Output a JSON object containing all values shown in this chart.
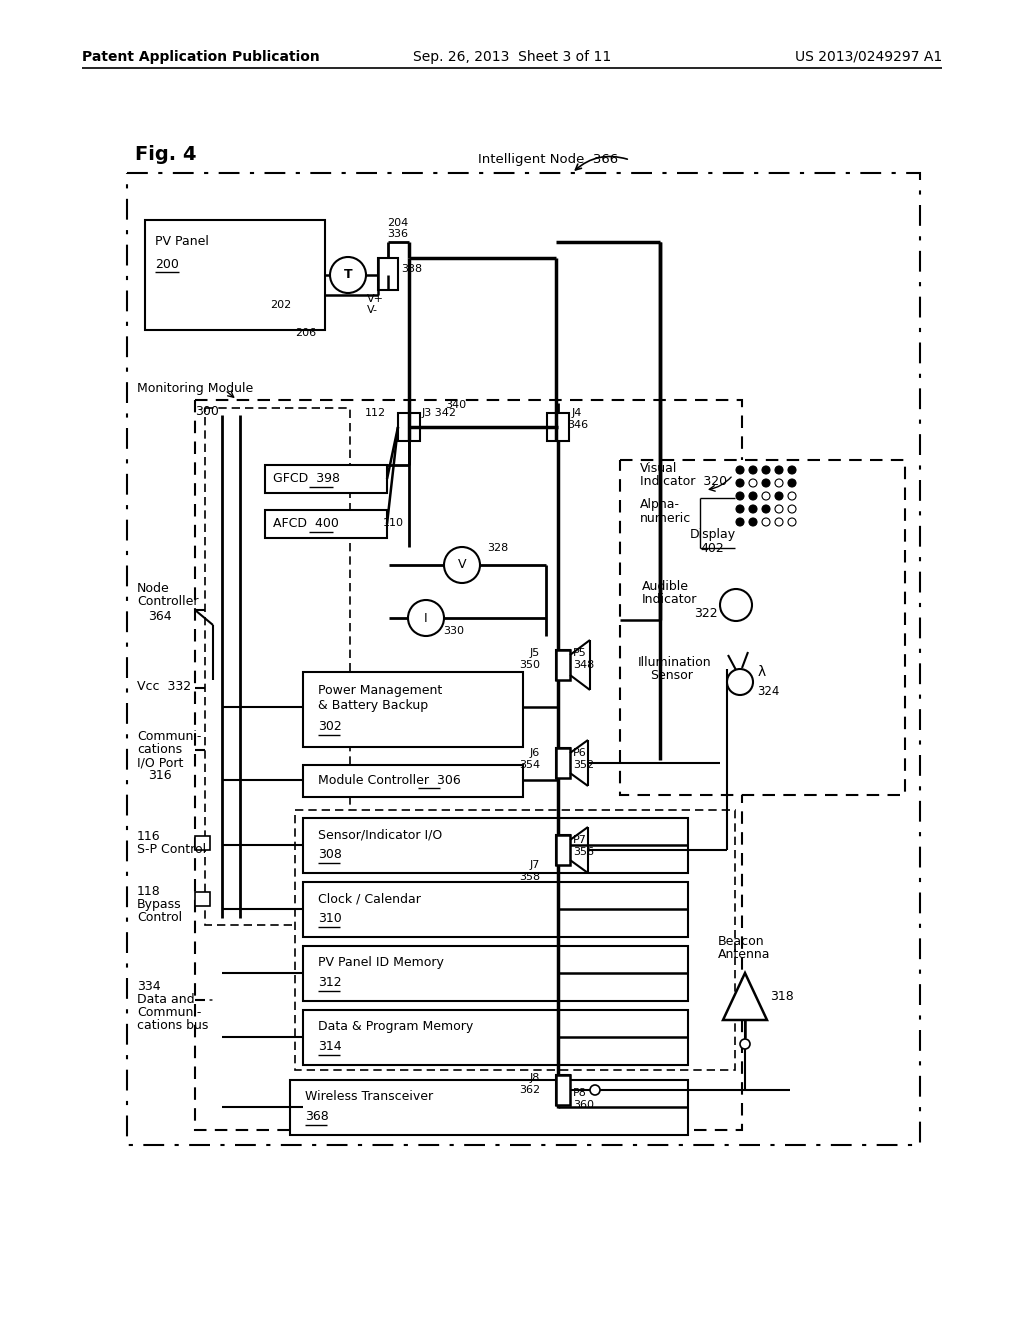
{
  "header_left": "Patent Application Publication",
  "header_center": "Sep. 26, 2013  Sheet 3 of 11",
  "header_right": "US 2013/0249297 A1",
  "bg_color": "#ffffff"
}
